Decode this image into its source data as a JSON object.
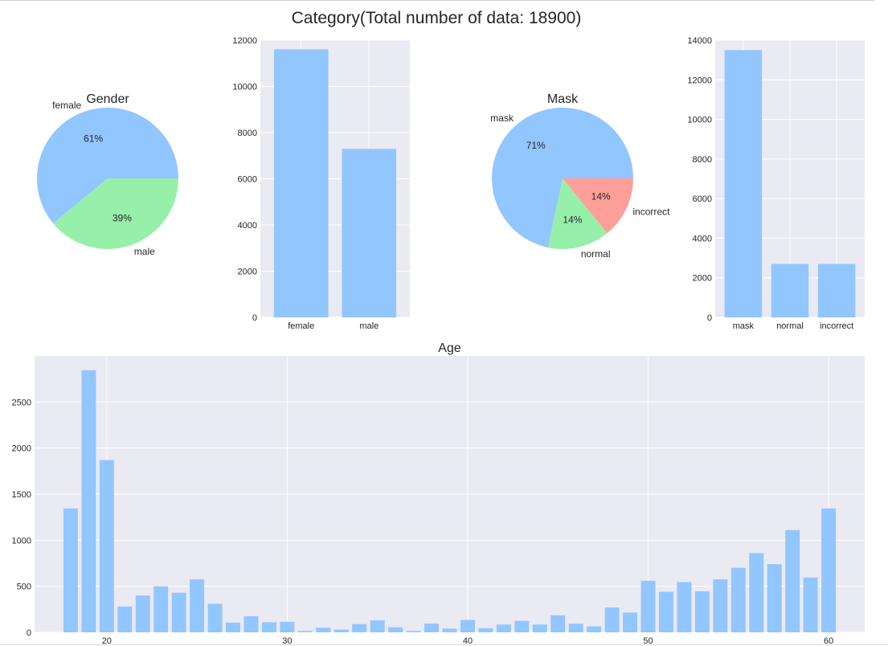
{
  "title": "Category(Total number of data: 18900)",
  "colors": {
    "blue": "#92c6ff",
    "green": "#97f0aa",
    "red": "#ff9f9a",
    "panel": "#eaeaf2",
    "grid": "#ffffff",
    "text": "#262626"
  },
  "chart_data": [
    {
      "type": "pie",
      "title": "Gender",
      "labels": [
        "female",
        "male"
      ],
      "values": [
        61,
        39
      ],
      "pct_labels": [
        "61%",
        "39%"
      ],
      "colors": [
        "#92c6ff",
        "#97f0aa"
      ]
    },
    {
      "type": "bar",
      "title": "",
      "categories": [
        "female",
        "male"
      ],
      "values": [
        11606,
        7294
      ],
      "ylim": [
        0,
        12000
      ],
      "yticks": [
        "0",
        "2000",
        "4000",
        "6000",
        "8000",
        "10000",
        "12000"
      ],
      "grid": true
    },
    {
      "type": "pie",
      "title": "Mask",
      "labels": [
        "mask",
        "normal",
        "incorrect"
      ],
      "values": [
        71,
        14,
        14
      ],
      "pct_labels": [
        "71%",
        "14%",
        "14%"
      ],
      "colors": [
        "#92c6ff",
        "#97f0aa",
        "#ff9f9a"
      ]
    },
    {
      "type": "bar",
      "title": "",
      "categories": [
        "mask",
        "normal",
        "incorrect"
      ],
      "values": [
        13500,
        2700,
        2700
      ],
      "ylim": [
        0,
        14000
      ],
      "yticks": [
        "0",
        "2000",
        "4000",
        "6000",
        "8000",
        "10000",
        "12000",
        "14000"
      ],
      "grid": true
    },
    {
      "type": "bar",
      "title": "Age",
      "x": [
        18,
        19,
        20,
        21,
        22,
        23,
        24,
        25,
        26,
        27,
        28,
        29,
        30,
        31,
        32,
        33,
        34,
        35,
        36,
        37,
        38,
        39,
        40,
        41,
        42,
        43,
        44,
        45,
        46,
        47,
        48,
        49,
        50,
        51,
        52,
        53,
        54,
        55,
        56,
        57,
        58,
        59,
        60
      ],
      "values": [
        1345,
        2845,
        1870,
        280,
        400,
        500,
        430,
        575,
        310,
        105,
        175,
        110,
        115,
        15,
        50,
        30,
        90,
        130,
        55,
        15,
        95,
        40,
        135,
        45,
        85,
        125,
        85,
        185,
        95,
        65,
        270,
        215,
        560,
        440,
        545,
        445,
        575,
        700,
        860,
        740,
        1110,
        595,
        1345
      ],
      "xlim": [
        16,
        62
      ],
      "xticks": [
        "20",
        "30",
        "40",
        "50",
        "60"
      ],
      "ylim": [
        0,
        3000
      ],
      "yticks": [
        "0",
        "500",
        "1000",
        "1500",
        "2000",
        "2500"
      ],
      "grid": true
    }
  ]
}
